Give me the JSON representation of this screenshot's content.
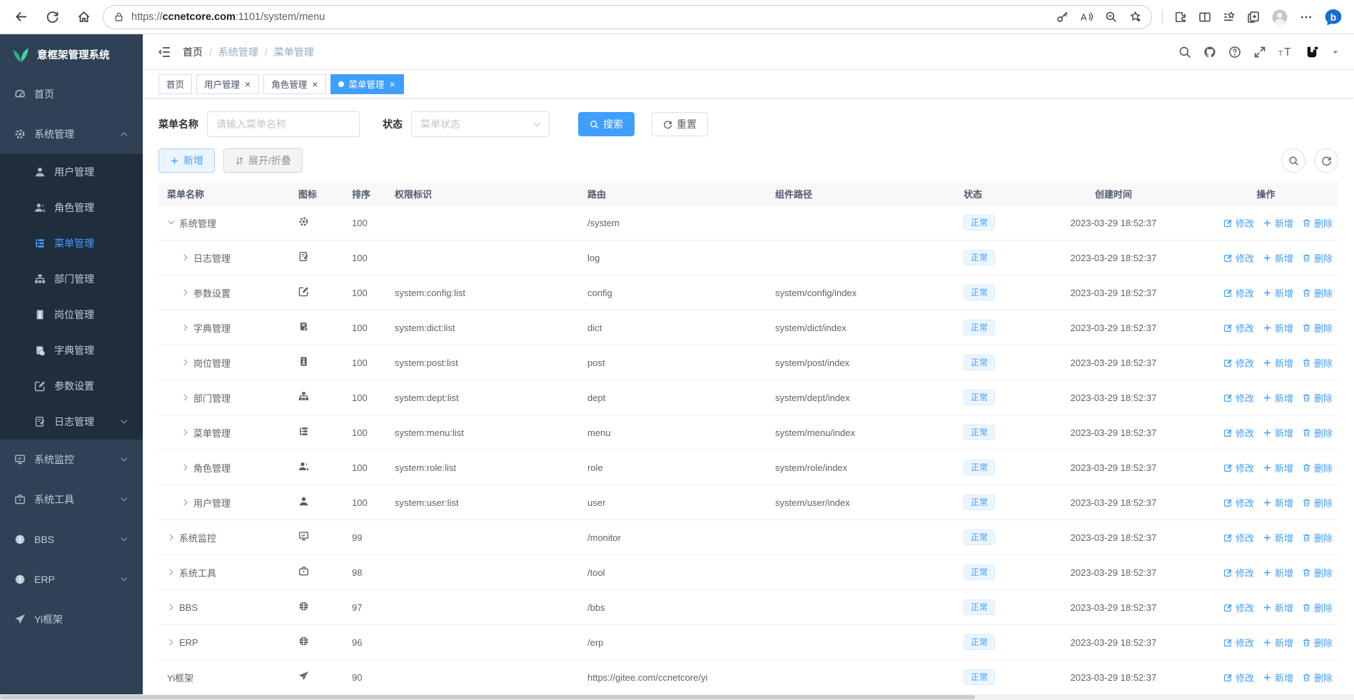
{
  "browser": {
    "url_scheme": "https://",
    "url_domain": "ccnetcore.com",
    "url_rest": ":1101/system/menu",
    "url_full": "https://ccnetcore.com:1101/system/menu"
  },
  "colors": {
    "accent": "#409eff",
    "sidebar_bg": "#304156",
    "sidebar_submenu_bg": "#1f2d3d",
    "sidebar_text": "#bfcbd9",
    "badge_bg": "#ecf5ff",
    "badge_border": "#d9ecff",
    "logo_green": "#42d3a5",
    "table_header_bg": "#f8f8f9"
  },
  "sidebar": {
    "logo_title": "意框架管理系统",
    "items": [
      {
        "key": "home",
        "label": "首页",
        "icon": "dashboard",
        "type": "root",
        "arrow": "",
        "active": false
      },
      {
        "key": "system",
        "label": "系统管理",
        "icon": "gear",
        "type": "root",
        "arrow": "up",
        "active": false
      },
      {
        "key": "user",
        "label": "用户管理",
        "icon": "user",
        "type": "sub",
        "arrow": "",
        "active": false
      },
      {
        "key": "role",
        "label": "角色管理",
        "icon": "users",
        "type": "sub",
        "arrow": "",
        "active": false
      },
      {
        "key": "menu",
        "label": "菜单管理",
        "icon": "menu-tree",
        "type": "sub",
        "arrow": "",
        "active": true
      },
      {
        "key": "dept",
        "label": "部门管理",
        "icon": "dept-tree",
        "type": "sub",
        "arrow": "",
        "active": false
      },
      {
        "key": "post",
        "label": "岗位管理",
        "icon": "post-badge",
        "type": "sub",
        "arrow": "",
        "active": false
      },
      {
        "key": "dict",
        "label": "字典管理",
        "icon": "dict-book",
        "type": "sub",
        "arrow": "",
        "active": false
      },
      {
        "key": "config",
        "label": "参数设置",
        "icon": "edit-square",
        "type": "sub",
        "arrow": "",
        "active": false
      },
      {
        "key": "log",
        "label": "日志管理",
        "icon": "log-doc",
        "type": "sub",
        "arrow": "down",
        "active": false
      },
      {
        "key": "monitor",
        "label": "系统监控",
        "icon": "monitor",
        "type": "root",
        "arrow": "down",
        "active": false
      },
      {
        "key": "tool",
        "label": "系统工具",
        "icon": "briefcase",
        "type": "root",
        "arrow": "down",
        "active": false
      },
      {
        "key": "bbs",
        "label": "BBS",
        "icon": "globe",
        "type": "root",
        "arrow": "down",
        "active": false
      },
      {
        "key": "erp",
        "label": "ERP",
        "icon": "globe",
        "type": "root",
        "arrow": "down",
        "active": false
      },
      {
        "key": "yi",
        "label": "Yi框架",
        "icon": "paper-plane",
        "type": "root",
        "arrow": "",
        "active": false
      }
    ]
  },
  "header": {
    "breadcrumbs": [
      "首页",
      "系统管理",
      "菜单管理"
    ],
    "icon_names": [
      "search-icon",
      "github-icon",
      "question-icon",
      "fullscreen-icon",
      "font-size-icon",
      "avatar-logo",
      "caret-down-icon"
    ]
  },
  "tabs": [
    {
      "key": "home",
      "label": "首页",
      "closable": false,
      "active": false
    },
    {
      "key": "user",
      "label": "用户管理",
      "closable": true,
      "active": false
    },
    {
      "key": "role",
      "label": "角色管理",
      "closable": true,
      "active": false
    },
    {
      "key": "menu",
      "label": "菜单管理",
      "closable": true,
      "active": true
    }
  ],
  "filter": {
    "name_label": "菜单名称",
    "name_placeholder": "请输入菜单名称",
    "name_value": "",
    "status_label": "状态",
    "status_placeholder": "菜单状态",
    "search_label": "搜索",
    "reset_label": "重置"
  },
  "toolbar": {
    "add_label": "新增",
    "toggle_label": "展开/折叠"
  },
  "table": {
    "columns": [
      "菜单名称",
      "图标",
      "排序",
      "权限标识",
      "路由",
      "组件路径",
      "状态",
      "创建时间",
      "操作"
    ],
    "actions": {
      "edit": "修改",
      "add": "新增",
      "delete": "删除"
    },
    "rows": [
      {
        "key": "system",
        "name": "系统管理",
        "icon": "gear",
        "level": 0,
        "expand": "down",
        "sort": "100",
        "perms": "",
        "route": "/system",
        "component": "",
        "status": "正常",
        "created": "2023-03-29 18:52:37"
      },
      {
        "key": "log",
        "name": "日志管理",
        "icon": "log-doc",
        "level": 1,
        "expand": "right",
        "sort": "100",
        "perms": "",
        "route": "log",
        "component": "",
        "status": "正常",
        "created": "2023-03-29 18:52:37"
      },
      {
        "key": "config",
        "name": "参数设置",
        "icon": "edit-square",
        "level": 1,
        "expand": "right",
        "sort": "100",
        "perms": "system:config:list",
        "route": "config",
        "component": "system/config/index",
        "status": "正常",
        "created": "2023-03-29 18:52:37"
      },
      {
        "key": "dict",
        "name": "字典管理",
        "icon": "dict-book",
        "level": 1,
        "expand": "right",
        "sort": "100",
        "perms": "system:dict:list",
        "route": "dict",
        "component": "system/dict/index",
        "status": "正常",
        "created": "2023-03-29 18:52:37"
      },
      {
        "key": "post",
        "name": "岗位管理",
        "icon": "post-badge",
        "level": 1,
        "expand": "right",
        "sort": "100",
        "perms": "system:post:list",
        "route": "post",
        "component": "system/post/index",
        "status": "正常",
        "created": "2023-03-29 18:52:37"
      },
      {
        "key": "dept",
        "name": "部门管理",
        "icon": "dept-tree",
        "level": 1,
        "expand": "right",
        "sort": "100",
        "perms": "system:dept:list",
        "route": "dept",
        "component": "system/dept/index",
        "status": "正常",
        "created": "2023-03-29 18:52:37"
      },
      {
        "key": "menu",
        "name": "菜单管理",
        "icon": "menu-tree",
        "level": 1,
        "expand": "right",
        "sort": "100",
        "perms": "system:menu:list",
        "route": "menu",
        "component": "system/menu/index",
        "status": "正常",
        "created": "2023-03-29 18:52:37"
      },
      {
        "key": "role",
        "name": "角色管理",
        "icon": "users",
        "level": 1,
        "expand": "right",
        "sort": "100",
        "perms": "system:role:list",
        "route": "role",
        "component": "system/role/index",
        "status": "正常",
        "created": "2023-03-29 18:52:37"
      },
      {
        "key": "user",
        "name": "用户管理",
        "icon": "user",
        "level": 1,
        "expand": "right",
        "sort": "100",
        "perms": "system:user:list",
        "route": "user",
        "component": "system/user/index",
        "status": "正常",
        "created": "2023-03-29 18:52:37"
      },
      {
        "key": "monitor",
        "name": "系统监控",
        "icon": "monitor",
        "level": 0,
        "expand": "right",
        "sort": "99",
        "perms": "",
        "route": "/monitor",
        "component": "",
        "status": "正常",
        "created": "2023-03-29 18:52:37"
      },
      {
        "key": "tool",
        "name": "系统工具",
        "icon": "briefcase",
        "level": 0,
        "expand": "right",
        "sort": "98",
        "perms": "",
        "route": "/tool",
        "component": "",
        "status": "正常",
        "created": "2023-03-29 18:52:37"
      },
      {
        "key": "bbs",
        "name": "BBS",
        "icon": "globe",
        "level": 0,
        "expand": "right",
        "sort": "97",
        "perms": "",
        "route": "/bbs",
        "component": "",
        "status": "正常",
        "created": "2023-03-29 18:52:37"
      },
      {
        "key": "erp",
        "name": "ERP",
        "icon": "globe",
        "level": 0,
        "expand": "right",
        "sort": "96",
        "perms": "",
        "route": "/erp",
        "component": "",
        "status": "正常",
        "created": "2023-03-29 18:52:37"
      },
      {
        "key": "yi",
        "name": "Yi框架",
        "icon": "paper-plane",
        "level": 0,
        "expand": "none",
        "sort": "90",
        "perms": "",
        "route": "https://gitee.com/ccnetcore/yi",
        "component": "",
        "status": "正常",
        "created": "2023-03-29 18:52:37"
      }
    ]
  }
}
